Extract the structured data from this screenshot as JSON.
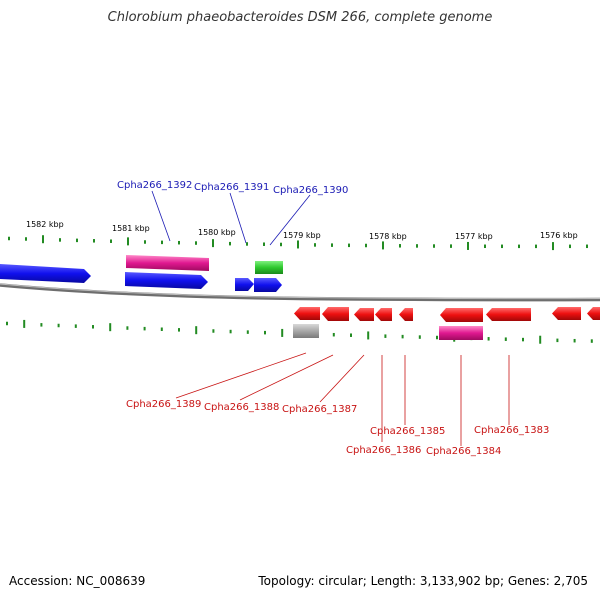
{
  "title": "Chlorobium phaeobacteroides DSM 266, complete genome",
  "footer": {
    "accession": "Accession: NC_008639",
    "summary": "Topology: circular; Length: 3,133,902 bp; Genes: 2,705"
  },
  "colors": {
    "forward_gene": "#1515ee",
    "reverse_gene": "#ee1515",
    "rna_gene": "#e01890",
    "highlight_gene": "#2ec82e",
    "pseudo_gene": "#a8a8a8",
    "tick": "#228b22",
    "label_forward": "#1a1ab4",
    "label_reverse": "#c81414"
  },
  "kbp_labels": [
    "1582 kbp",
    "1581 kbp",
    "1580 kbp",
    "1579 kbp",
    "1578 kbp",
    "1577 kbp",
    "1576 kbp"
  ],
  "forward_labels": [
    "Cpha266_1392",
    "Cpha266_1391",
    "Cpha266_1390"
  ],
  "reverse_labels": [
    "Cpha266_1389",
    "Cpha266_1388",
    "Cpha266_1387",
    "Cpha266_1385",
    "Cpha266_1386",
    "Cpha266_1384",
    "Cpha266_1383"
  ]
}
